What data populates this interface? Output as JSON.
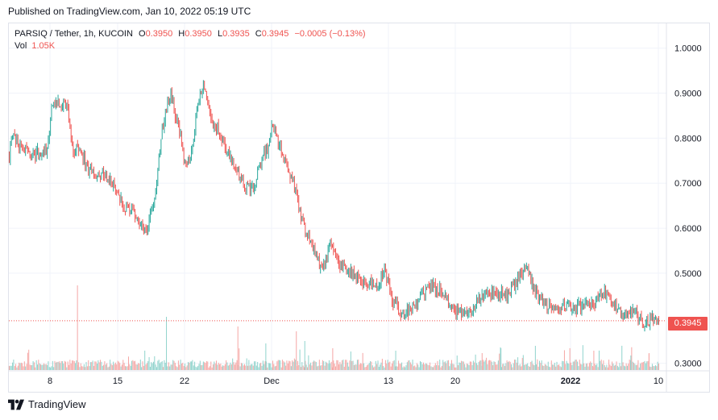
{
  "published": "Published on TradingView.com, Jan 10, 2022 05:19 UTC",
  "legend": {
    "symbol": "PARSIQ / Tether, 1h, KUCOIN",
    "o_label": "O",
    "o_value": "0.3950",
    "h_label": "H",
    "h_value": "0.3950",
    "l_label": "L",
    "l_value": "0.3935",
    "c_label": "C",
    "c_value": "0.3945",
    "change": "−0.0005 (−0.13%)",
    "vol_label": "Vol",
    "vol_value": "1.05K"
  },
  "last_price_label": "0.3945",
  "footer_brand": "TradingView",
  "colors": {
    "up": "#26a69a",
    "down": "#ef5350",
    "grid": "#f0f3fa",
    "axis_text": "#131722"
  },
  "chart_data": {
    "type": "candlestick",
    "symbol": "PARSIQ / Tether",
    "interval": "1h",
    "exchange": "KUCOIN",
    "y_ticks": [
      "1.0000",
      "0.9000",
      "0.8000",
      "0.7000",
      "0.6000",
      "0.5000",
      "0.3000"
    ],
    "ylim": [
      0.285,
      1.055
    ],
    "x_ticks": [
      "8",
      "15",
      "22",
      "Dec",
      "13",
      "20",
      "2022",
      "10"
    ],
    "last_price": 0.3945,
    "grid": true,
    "price_path": [
      [
        0,
        0.76
      ],
      [
        0.006,
        0.82
      ],
      [
        0.012,
        0.79
      ],
      [
        0.02,
        0.775
      ],
      [
        0.03,
        0.77
      ],
      [
        0.045,
        0.765
      ],
      [
        0.058,
        0.77
      ],
      [
        0.065,
        0.86
      ],
      [
        0.072,
        0.88
      ],
      [
        0.082,
        0.87
      ],
      [
        0.09,
        0.875
      ],
      [
        0.098,
        0.76
      ],
      [
        0.105,
        0.79
      ],
      [
        0.118,
        0.74
      ],
      [
        0.13,
        0.72
      ],
      [
        0.145,
        0.72
      ],
      [
        0.16,
        0.7
      ],
      [
        0.175,
        0.65
      ],
      [
        0.19,
        0.64
      ],
      [
        0.205,
        0.6
      ],
      [
        0.215,
        0.61
      ],
      [
        0.225,
        0.68
      ],
      [
        0.235,
        0.82
      ],
      [
        0.248,
        0.9
      ],
      [
        0.258,
        0.84
      ],
      [
        0.27,
        0.75
      ],
      [
        0.28,
        0.76
      ],
      [
        0.29,
        0.88
      ],
      [
        0.3,
        0.92
      ],
      [
        0.31,
        0.84
      ],
      [
        0.322,
        0.82
      ],
      [
        0.335,
        0.77
      ],
      [
        0.35,
        0.73
      ],
      [
        0.365,
        0.69
      ],
      [
        0.378,
        0.7
      ],
      [
        0.39,
        0.76
      ],
      [
        0.4,
        0.78
      ],
      [
        0.405,
        0.835
      ],
      [
        0.415,
        0.79
      ],
      [
        0.425,
        0.75
      ],
      [
        0.438,
        0.7
      ],
      [
        0.45,
        0.62
      ],
      [
        0.46,
        0.58
      ],
      [
        0.472,
        0.54
      ],
      [
        0.482,
        0.5
      ],
      [
        0.495,
        0.57
      ],
      [
        0.508,
        0.52
      ],
      [
        0.52,
        0.51
      ],
      [
        0.535,
        0.49
      ],
      [
        0.55,
        0.48
      ],
      [
        0.565,
        0.47
      ],
      [
        0.578,
        0.51
      ],
      [
        0.59,
        0.44
      ],
      [
        0.605,
        0.41
      ],
      [
        0.62,
        0.42
      ],
      [
        0.635,
        0.45
      ],
      [
        0.65,
        0.47
      ],
      [
        0.665,
        0.46
      ],
      [
        0.68,
        0.43
      ],
      [
        0.695,
        0.41
      ],
      [
        0.71,
        0.42
      ],
      [
        0.722,
        0.44
      ],
      [
        0.737,
        0.45
      ],
      [
        0.75,
        0.46
      ],
      [
        0.765,
        0.45
      ],
      [
        0.78,
        0.48
      ],
      [
        0.795,
        0.52
      ],
      [
        0.81,
        0.46
      ],
      [
        0.825,
        0.43
      ],
      [
        0.84,
        0.415
      ],
      [
        0.855,
        0.43
      ],
      [
        0.87,
        0.42
      ],
      [
        0.885,
        0.43
      ],
      [
        0.9,
        0.43
      ],
      [
        0.915,
        0.46
      ],
      [
        0.93,
        0.43
      ],
      [
        0.945,
        0.41
      ],
      [
        0.96,
        0.42
      ],
      [
        0.975,
        0.39
      ],
      [
        0.99,
        0.395
      ],
      [
        1.0,
        0.3945
      ]
    ],
    "volume_spikes": [
      [
        0.105,
        0.35
      ],
      [
        0.242,
        0.22
      ],
      [
        0.352,
        0.18
      ],
      [
        0.395,
        0.11
      ],
      [
        0.442,
        0.16
      ],
      [
        0.455,
        0.12
      ],
      [
        0.498,
        0.09
      ],
      [
        0.595,
        0.08
      ],
      [
        0.728,
        0.07
      ],
      [
        0.757,
        0.09
      ],
      [
        0.79,
        0.05
      ],
      [
        0.81,
        0.1
      ],
      [
        0.9,
        0.08
      ],
      [
        0.957,
        0.06
      ],
      [
        0.985,
        0.07
      ]
    ]
  }
}
